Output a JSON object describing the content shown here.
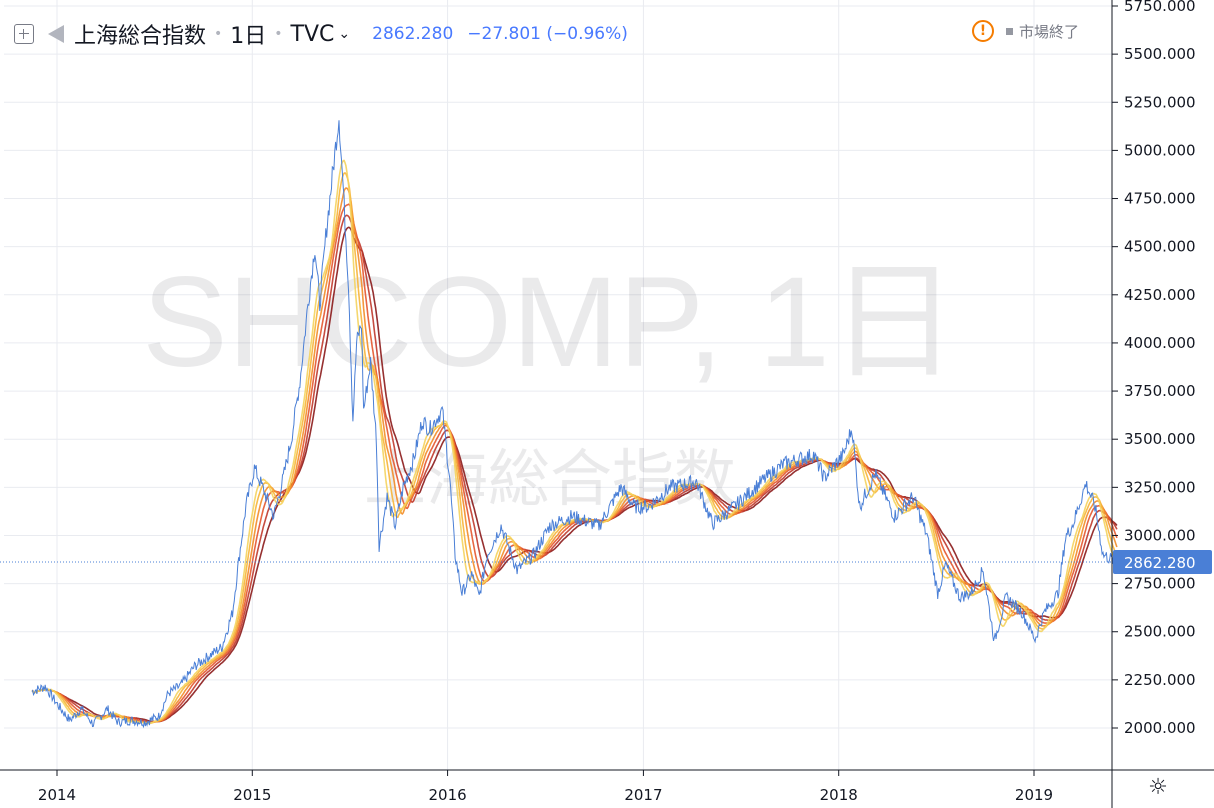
{
  "legend": {
    "symbol_name": "上海総合指数",
    "interval": "1日",
    "source": "TVC",
    "last_value": "2862.280",
    "change": "−27.801 (−0.96%)"
  },
  "status": {
    "market": "市場終了",
    "warning_glyph": "!"
  },
  "watermark": {
    "line1": "SHCOMP, 1日",
    "line2": "上海総合指数"
  },
  "colors": {
    "price_line": "#4a7fd6",
    "price_label_bg": "#4a7fd6",
    "ribbon": [
      "#8b1a1a",
      "#c0392b",
      "#e4572e",
      "#f28c28",
      "#f7b538",
      "#f4d35e"
    ]
  },
  "icons": {
    "add": "plus-square-icon",
    "flag": "flag-icon",
    "chevron": "chevron-down-icon",
    "settings": "gear-icon"
  },
  "chart_data": {
    "type": "line",
    "title": "上海総合指数",
    "xlabel": "",
    "ylabel": "",
    "x_range": [
      "2013-11",
      "2019-06"
    ],
    "ylim": [
      1800,
      5750
    ],
    "y_ticks": [
      "2000.000",
      "2250.000",
      "2500.000",
      "2750.000",
      "3000.000",
      "3250.000",
      "3500.000",
      "3750.000",
      "4000.000",
      "4250.000",
      "4500.000",
      "4750.000",
      "5000.000",
      "5250.000",
      "5500.000",
      "5750.000"
    ],
    "x_ticks": [
      "2014",
      "2015",
      "2016",
      "2017",
      "2018",
      "2019"
    ],
    "grid": true,
    "current_price": 2862.28,
    "current_price_label": "2862.280",
    "series": [
      {
        "points": [
          [
            "2013-11-15",
            2190
          ],
          [
            "2013-12-10",
            2215
          ],
          [
            "2014-01-05",
            2110
          ],
          [
            "2014-01-25",
            2040
          ],
          [
            "2014-02-15",
            2100
          ],
          [
            "2014-03-10",
            2020
          ],
          [
            "2014-04-05",
            2100
          ],
          [
            "2014-04-25",
            2030
          ],
          [
            "2014-05-20",
            2040
          ],
          [
            "2014-06-15",
            2030
          ],
          [
            "2014-07-10",
            2060
          ],
          [
            "2014-07-28",
            2180
          ],
          [
            "2014-08-20",
            2220
          ],
          [
            "2014-09-15",
            2320
          ],
          [
            "2014-10-15",
            2380
          ],
          [
            "2014-11-05",
            2420
          ],
          [
            "2014-11-25",
            2600
          ],
          [
            "2014-12-08",
            2900
          ],
          [
            "2014-12-20",
            3150
          ],
          [
            "2015-01-05",
            3350
          ],
          [
            "2015-01-20",
            3250
          ],
          [
            "2015-02-10",
            3100
          ],
          [
            "2015-02-28",
            3300
          ],
          [
            "2015-03-15",
            3500
          ],
          [
            "2015-03-31",
            3800
          ],
          [
            "2015-04-15",
            4200
          ],
          [
            "2015-04-28",
            4500
          ],
          [
            "2015-05-07",
            4200
          ],
          [
            "2015-05-20",
            4600
          ],
          [
            "2015-06-01",
            4900
          ],
          [
            "2015-06-12",
            5178
          ],
          [
            "2015-06-20",
            4800
          ],
          [
            "2015-06-30",
            4300
          ],
          [
            "2015-07-08",
            3600
          ],
          [
            "2015-07-15",
            4000
          ],
          [
            "2015-07-24",
            4100
          ],
          [
            "2015-07-28",
            3650
          ],
          [
            "2015-08-10",
            3900
          ],
          [
            "2015-08-21",
            3500
          ],
          [
            "2015-08-26",
            2950
          ],
          [
            "2015-09-10",
            3200
          ],
          [
            "2015-09-25",
            3050
          ],
          [
            "2015-10-10",
            3250
          ],
          [
            "2015-10-30",
            3400
          ],
          [
            "2015-11-15",
            3600
          ],
          [
            "2015-11-28",
            3550
          ],
          [
            "2015-12-22",
            3650
          ],
          [
            "2016-01-05",
            3300
          ],
          [
            "2016-01-15",
            2900
          ],
          [
            "2016-01-28",
            2700
          ],
          [
            "2016-02-15",
            2800
          ],
          [
            "2016-02-29",
            2680
          ],
          [
            "2016-03-15",
            2900
          ],
          [
            "2016-04-10",
            3050
          ],
          [
            "2016-05-10",
            2820
          ],
          [
            "2016-06-10",
            2900
          ],
          [
            "2016-07-10",
            3050
          ],
          [
            "2016-08-20",
            3100
          ],
          [
            "2016-10-10",
            3050
          ],
          [
            "2016-11-20",
            3250
          ],
          [
            "2016-12-15",
            3150
          ],
          [
            "2017-01-10",
            3150
          ],
          [
            "2017-02-20",
            3250
          ],
          [
            "2017-04-10",
            3280
          ],
          [
            "2017-05-10",
            3060
          ],
          [
            "2017-06-20",
            3150
          ],
          [
            "2017-08-10",
            3280
          ],
          [
            "2017-09-20",
            3370
          ],
          [
            "2017-11-15",
            3420
          ],
          [
            "2017-12-05",
            3300
          ],
          [
            "2018-01-10",
            3420
          ],
          [
            "2018-01-26",
            3560
          ],
          [
            "2018-02-09",
            3150
          ],
          [
            "2018-03-10",
            3320
          ],
          [
            "2018-04-15",
            3100
          ],
          [
            "2018-05-20",
            3200
          ],
          [
            "2018-06-15",
            3000
          ],
          [
            "2018-07-05",
            2700
          ],
          [
            "2018-07-20",
            2850
          ],
          [
            "2018-08-15",
            2680
          ],
          [
            "2018-09-05",
            2700
          ],
          [
            "2018-09-28",
            2820
          ],
          [
            "2018-10-19",
            2450
          ],
          [
            "2018-11-10",
            2680
          ],
          [
            "2018-12-10",
            2600
          ],
          [
            "2019-01-03",
            2460
          ],
          [
            "2019-01-20",
            2600
          ],
          [
            "2019-02-15",
            2700
          ],
          [
            "2019-03-01",
            2990
          ],
          [
            "2019-03-15",
            3060
          ],
          [
            "2019-04-08",
            3270
          ],
          [
            "2019-04-25",
            3150
          ],
          [
            "2019-05-10",
            2900
          ],
          [
            "2019-05-24",
            2880
          ],
          [
            "2019-06-05",
            2862
          ]
        ]
      }
    ]
  }
}
